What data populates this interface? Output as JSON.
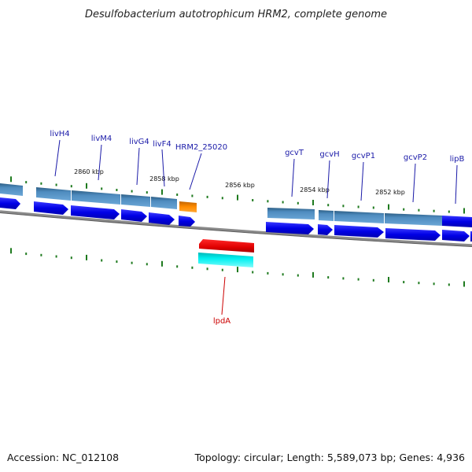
{
  "title": "Desulfobacterium autotrophicum HRM2, complete genome",
  "footer": {
    "accession": "Accession: NC_012108",
    "summary": "Topology: circular; Length: 5,589,073 bp; Genes: 4,936"
  },
  "colors": {
    "label_blue": "#1a1aa8",
    "label_red": "#cc0000",
    "tick_green": "#1e7a1e",
    "backbone": "#7a7a7a",
    "gene_blue": "#0000ee",
    "gene_steel": "#4a86b8",
    "gene_orange": "#ff8c00",
    "gene_red": "#ee0000",
    "gene_cyan": "#00e5e5"
  },
  "gene_labels": [
    {
      "name": "livH4",
      "color": "blue"
    },
    {
      "name": "livM4",
      "color": "blue"
    },
    {
      "name": "livG4",
      "color": "blue"
    },
    {
      "name": "livF4",
      "color": "blue"
    },
    {
      "name": "HRM2_25020",
      "color": "blue"
    },
    {
      "name": "gcvT",
      "color": "blue"
    },
    {
      "name": "gcvH",
      "color": "blue"
    },
    {
      "name": "gcvP1",
      "color": "blue"
    },
    {
      "name": "gcvP2",
      "color": "blue"
    },
    {
      "name": "lipB",
      "color": "blue"
    },
    {
      "name": "lpdA",
      "color": "red"
    }
  ],
  "scale_labels": [
    "2860 kbp",
    "2858 kbp",
    "2856 kbp",
    "2854 kbp",
    "2852 kbp"
  ]
}
